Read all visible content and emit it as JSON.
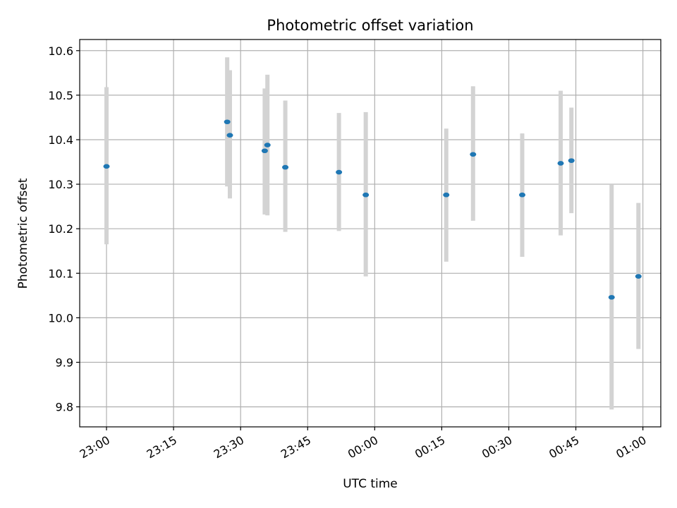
{
  "chart_data": {
    "type": "scatter",
    "title": "Photometric offset variation",
    "xlabel": "UTC time",
    "ylabel": "Photometric offset",
    "grid": true,
    "legend": "none",
    "x_ticks": [
      "23:00",
      "23:15",
      "23:30",
      "23:45",
      "00:00",
      "00:15",
      "00:30",
      "00:45",
      "01:00"
    ],
    "y_ticks": [
      "9.8",
      "9.9",
      "10.0",
      "10.1",
      "10.2",
      "10.3",
      "10.4",
      "10.5",
      "10.6"
    ],
    "xlim": [
      -6.0,
      124.0
    ],
    "ylim": [
      9.755,
      10.625
    ],
    "x_offset_minutes_from_23_00": true,
    "series": [
      {
        "marker_color": "#1f77b4",
        "errorbar_color": "#d3d3d3",
        "points": [
          {
            "time": "23:00",
            "x": 0.0,
            "y": 10.34,
            "lo": 10.165,
            "hi": 10.518
          },
          {
            "time": "23:27",
            "x": 27.0,
            "y": 10.44,
            "lo": 10.295,
            "hi": 10.585
          },
          {
            "time": "23:27:36",
            "x": 27.6,
            "y": 10.41,
            "lo": 10.268,
            "hi": 10.556
          },
          {
            "time": "23:35:24",
            "x": 35.4,
            "y": 10.375,
            "lo": 10.232,
            "hi": 10.515
          },
          {
            "time": "23:36",
            "x": 36.0,
            "y": 10.388,
            "lo": 10.23,
            "hi": 10.546
          },
          {
            "time": "23:40",
            "x": 40.0,
            "y": 10.338,
            "lo": 10.193,
            "hi": 10.488
          },
          {
            "time": "23:52",
            "x": 52.0,
            "y": 10.327,
            "lo": 10.195,
            "hi": 10.46
          },
          {
            "time": "23:58",
            "x": 58.0,
            "y": 10.276,
            "lo": 10.093,
            "hi": 10.462
          },
          {
            "time": "00:16",
            "x": 76.0,
            "y": 10.276,
            "lo": 10.126,
            "hi": 10.425
          },
          {
            "time": "00:22",
            "x": 82.0,
            "y": 10.367,
            "lo": 10.218,
            "hi": 10.52
          },
          {
            "time": "00:33",
            "x": 93.0,
            "y": 10.276,
            "lo": 10.137,
            "hi": 10.414
          },
          {
            "time": "00:41:36",
            "x": 101.6,
            "y": 10.347,
            "lo": 10.185,
            "hi": 10.51
          },
          {
            "time": "00:44",
            "x": 104.0,
            "y": 10.353,
            "lo": 10.235,
            "hi": 10.472
          },
          {
            "time": "00:53",
            "x": 113.0,
            "y": 10.046,
            "lo": 9.794,
            "hi": 10.3
          },
          {
            "time": "00:59",
            "x": 119.0,
            "y": 10.093,
            "lo": 9.93,
            "hi": 10.258
          }
        ]
      }
    ]
  }
}
